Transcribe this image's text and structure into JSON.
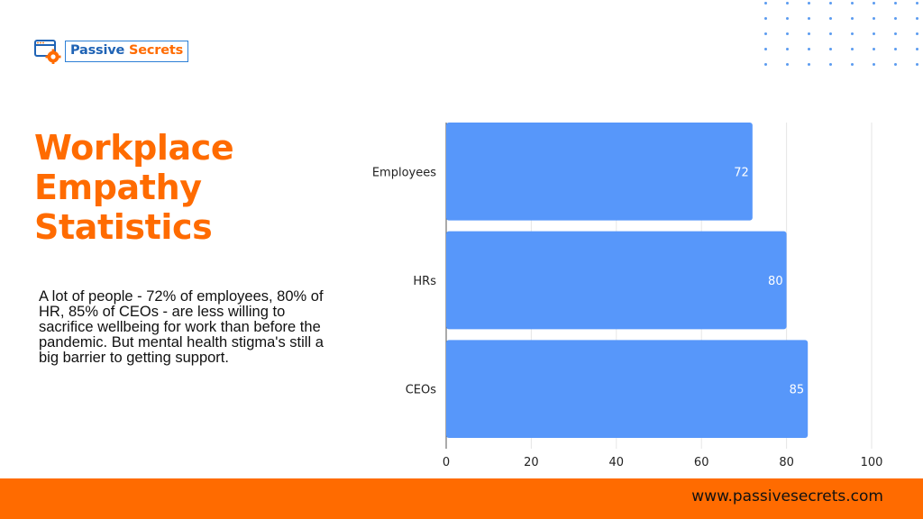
{
  "brand": {
    "name_part1": "Passive",
    "name_part2": "Secrets",
    "primary_color": "#1f63b5",
    "accent_color": "#ff6b00"
  },
  "title": "Workplace Empathy Statistics",
  "description": "A lot of people - 72% of employees, 80% of HR, 85% of CEOs - are less willing to sacrifice wellbeing for work than before the pandemic. But mental health stigma's still a big barrier to getting support.",
  "footer": {
    "url": "www.passivesecrets.com"
  },
  "chart_data": {
    "type": "bar",
    "orientation": "horizontal",
    "categories": [
      "Employees",
      "HRs",
      "CEOs"
    ],
    "values": [
      72,
      80,
      85
    ],
    "data_labels": [
      "72",
      "80",
      "85"
    ],
    "xlim": [
      0,
      100
    ],
    "x_ticks": [
      "0",
      "20",
      "40",
      "60",
      "80",
      "100"
    ],
    "grid": true,
    "legend": "none",
    "bar_color": "#5797fa",
    "title": "",
    "xlabel": "",
    "ylabel": ""
  }
}
